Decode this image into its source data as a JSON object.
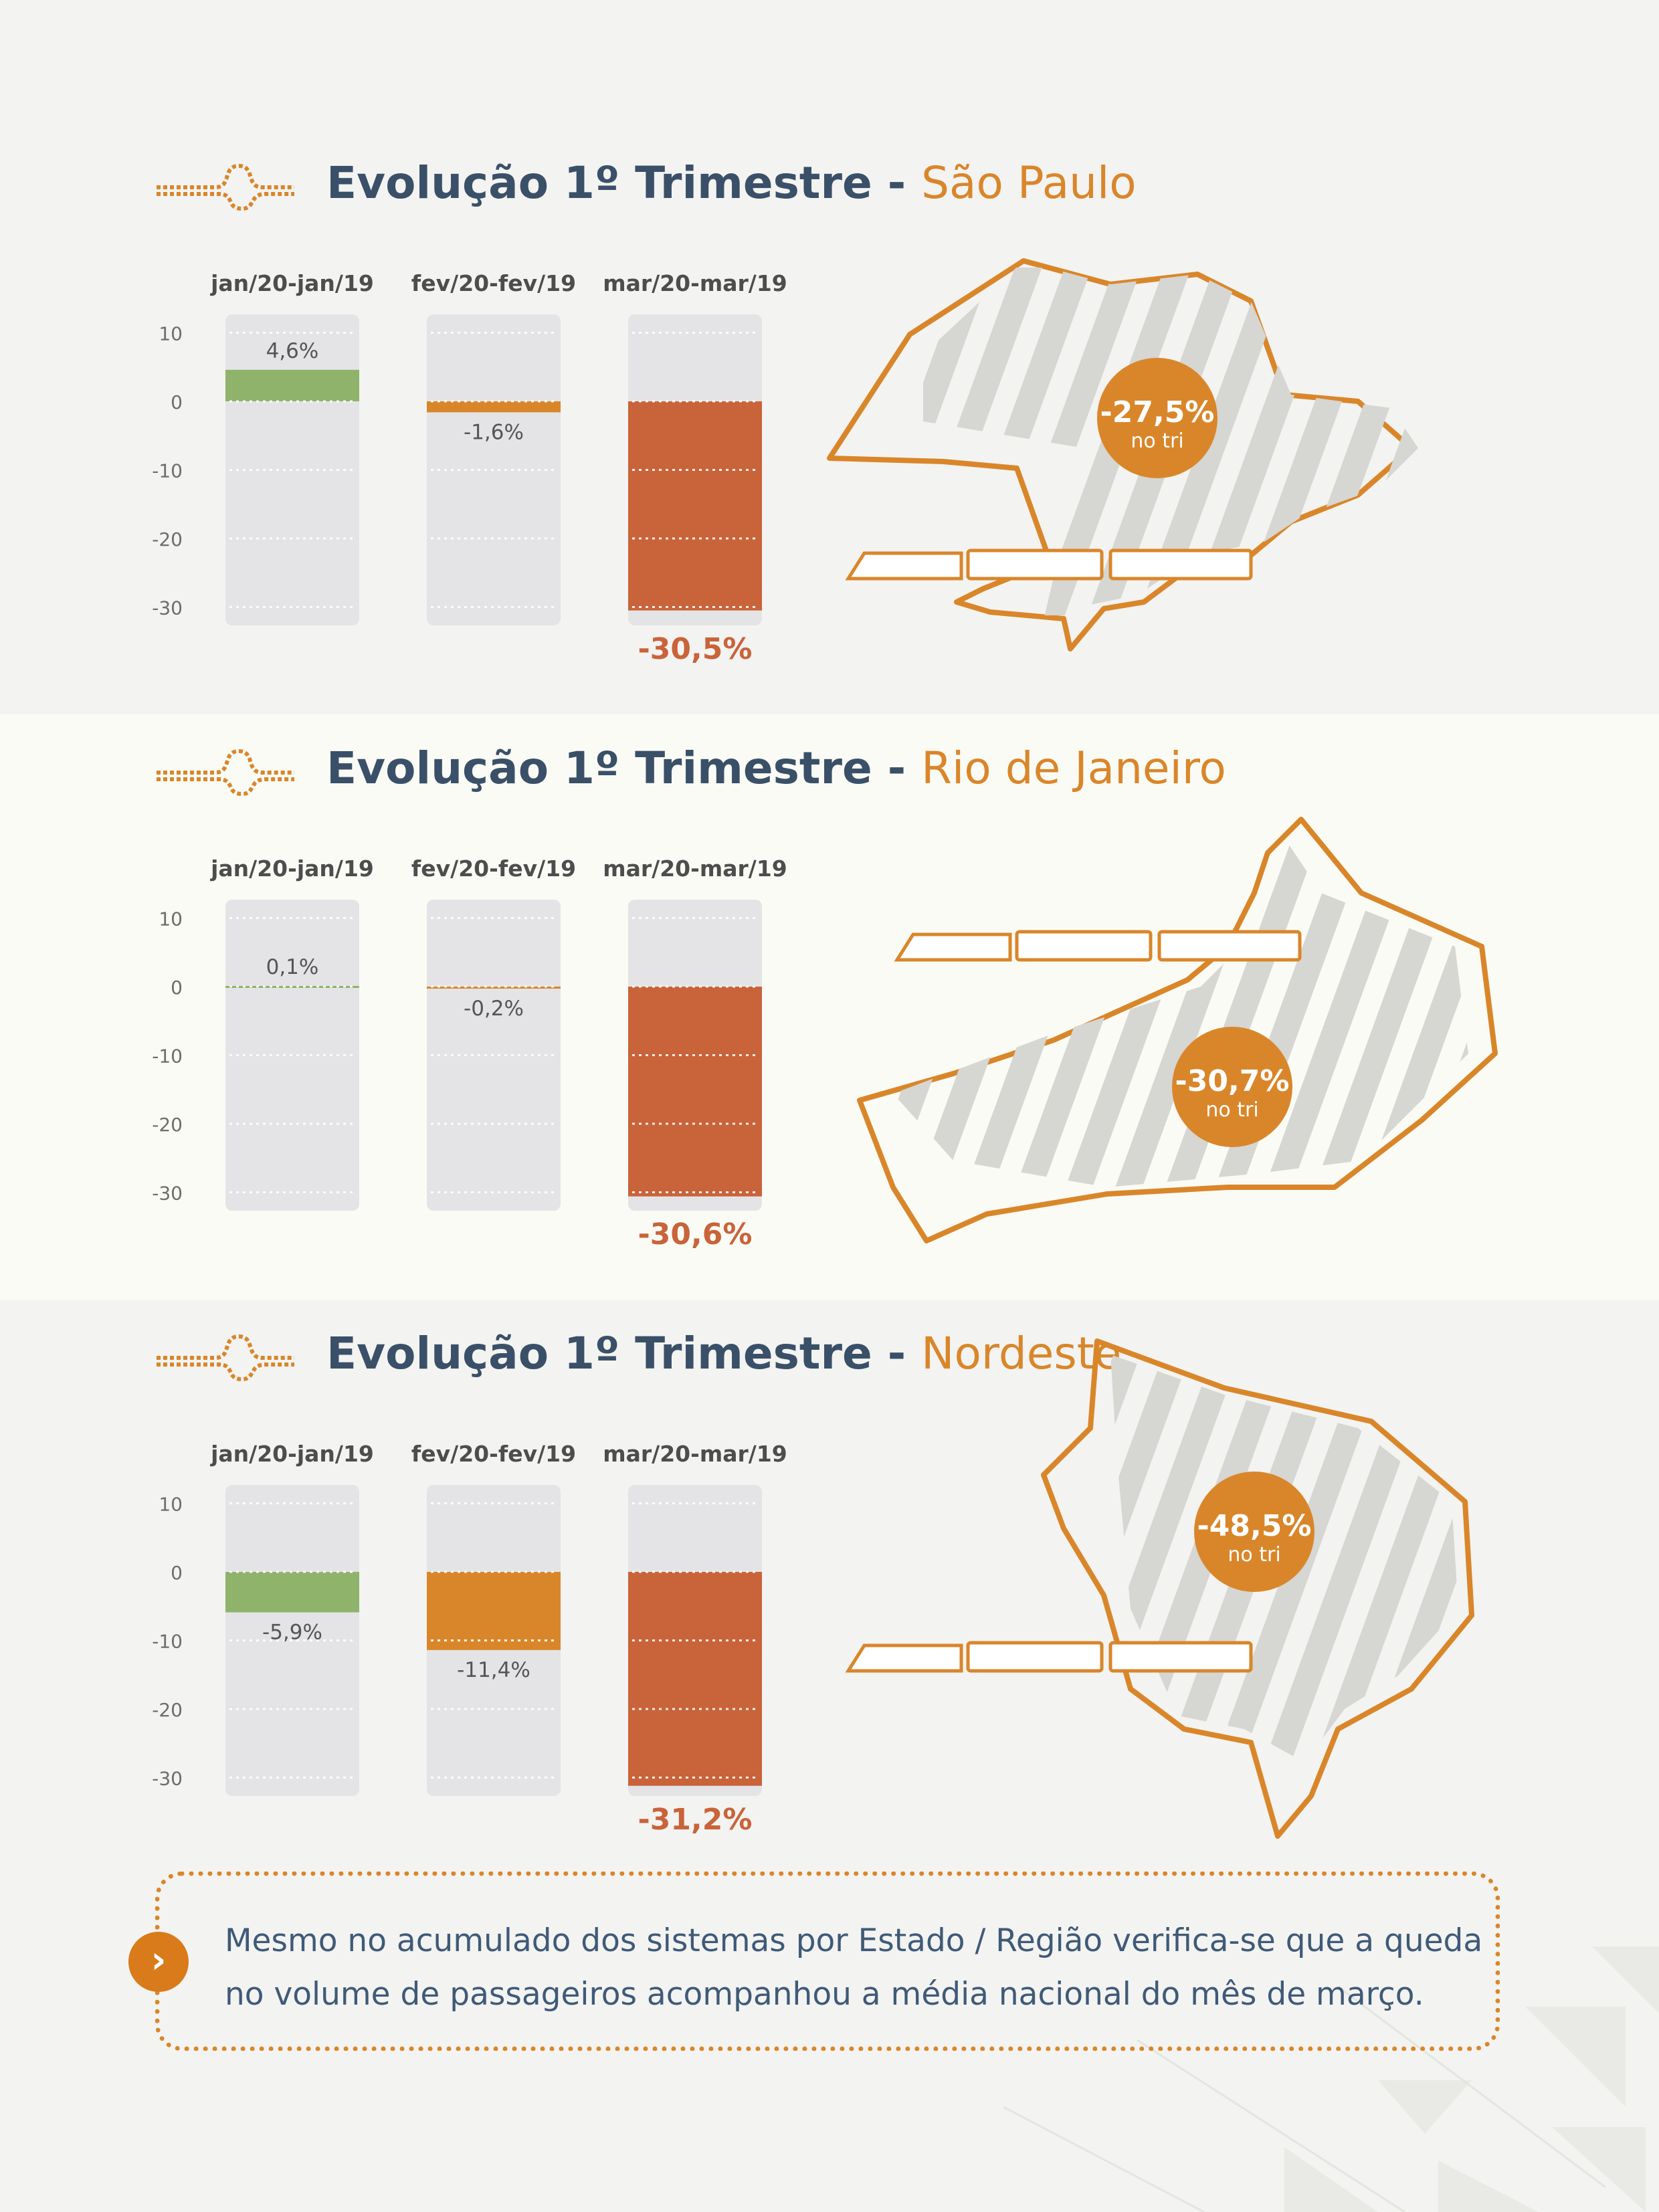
{
  "sections": [
    {
      "title_prefix": "Evolução 1º Trimestre",
      "separator": " - ",
      "region": "São Paulo",
      "badge_value": "-27,5%",
      "badge_sub": "no tri"
    },
    {
      "title_prefix": "Evolução 1º Trimestre",
      "separator": " - ",
      "region": "Rio de Janeiro",
      "badge_value": "-30,7%",
      "badge_sub": "no tri"
    },
    {
      "title_prefix": "Evolução 1º Trimestre",
      "separator": " - ",
      "region": "Nordeste",
      "badge_value": "-48,5%",
      "badge_sub": "no tri"
    }
  ],
  "chart_data": [
    {
      "type": "bar",
      "title": "Evolução 1º Trimestre - São Paulo",
      "categories": [
        "jan/20-jan/19",
        "fev/20-fev/19",
        "mar/20-mar/19"
      ],
      "values": [
        4.6,
        -1.6,
        -30.5
      ],
      "labels": [
        "4,6%",
        "-1,6%",
        "-30,5%"
      ],
      "colors": [
        "#8fb36a",
        "#d9862a",
        "#c9633a"
      ],
      "yticks": [
        10,
        0,
        -10,
        -20,
        -30
      ],
      "ylim": [
        -33,
        12
      ],
      "grid": true
    },
    {
      "type": "bar",
      "title": "Evolução 1º Trimestre - Rio de Janeiro",
      "categories": [
        "jan/20-jan/19",
        "fev/20-fev/19",
        "mar/20-mar/19"
      ],
      "values": [
        0.1,
        -0.2,
        -30.6
      ],
      "labels": [
        "0,1%",
        "-0,2%",
        "-30,6%"
      ],
      "colors": [
        "#8fb36a",
        "#d9862a",
        "#c9633a"
      ],
      "yticks": [
        10,
        0,
        -10,
        -20,
        -30
      ],
      "ylim": [
        -33,
        12
      ],
      "grid": true
    },
    {
      "type": "bar",
      "title": "Evolução 1º Trimestre - Nordeste",
      "categories": [
        "jan/20-jan/19",
        "fev/20-fev/19",
        "mar/20-mar/19"
      ],
      "values": [
        -5.9,
        -11.4,
        -31.2
      ],
      "labels": [
        "-5,9%",
        "-11,4%",
        "-31,2%"
      ],
      "colors": [
        "#8fb36a",
        "#d9862a",
        "#c9633a"
      ],
      "yticks": [
        10,
        0,
        -10,
        -20,
        -30
      ],
      "ylim": [
        -33,
        12
      ],
      "grid": true
    }
  ],
  "callout": {
    "line1": "Mesmo no acumulado dos sistemas por Estado / Região verifica-se que a queda",
    "line2": "no volume de passageiros acompanhou a média nacional do mês de março."
  },
  "colors": {
    "accent": "#d9862a",
    "title": "#3a5068",
    "track": "#e4e4e6",
    "text": "#3f5a78"
  }
}
